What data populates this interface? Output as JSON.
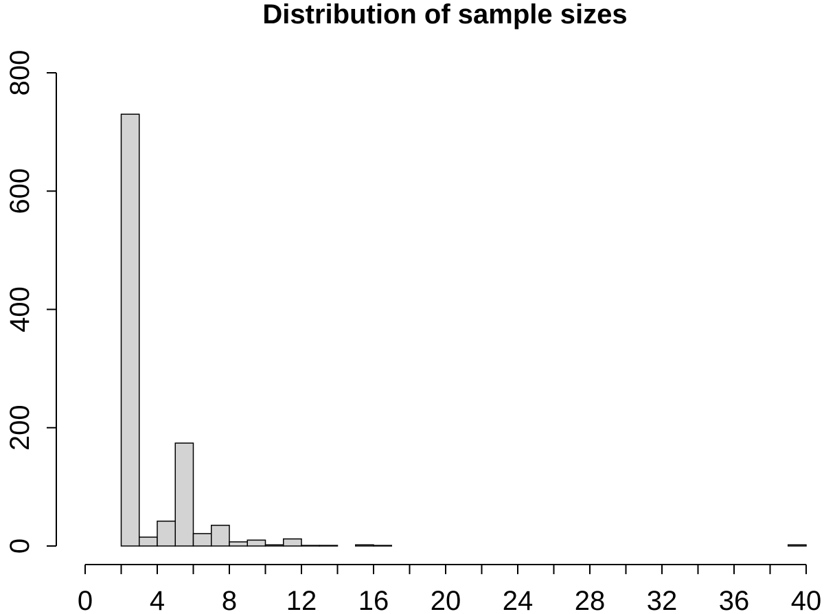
{
  "chart_data": {
    "type": "bar",
    "title": "Distribution of sample sizes",
    "xlabel": "",
    "ylabel": "",
    "bin_width": 1,
    "bins": [
      {
        "x0": 2,
        "x1": 3,
        "value": 730
      },
      {
        "x0": 3,
        "x1": 4,
        "value": 15
      },
      {
        "x0": 4,
        "x1": 5,
        "value": 42
      },
      {
        "x0": 5,
        "x1": 6,
        "value": 174
      },
      {
        "x0": 6,
        "x1": 7,
        "value": 21
      },
      {
        "x0": 7,
        "x1": 8,
        "value": 35
      },
      {
        "x0": 8,
        "x1": 9,
        "value": 7
      },
      {
        "x0": 9,
        "x1": 10,
        "value": 10
      },
      {
        "x0": 10,
        "x1": 11,
        "value": 2
      },
      {
        "x0": 11,
        "x1": 12,
        "value": 12
      },
      {
        "x0": 12,
        "x1": 13,
        "value": 1
      },
      {
        "x0": 13,
        "x1": 14,
        "value": 1
      },
      {
        "x0": 14,
        "x1": 15,
        "value": 0
      },
      {
        "x0": 15,
        "x1": 16,
        "value": 2
      },
      {
        "x0": 16,
        "x1": 17,
        "value": 1
      },
      {
        "x0": 17,
        "x1": 18,
        "value": 0
      },
      {
        "x0": 18,
        "x1": 19,
        "value": 0
      },
      {
        "x0": 19,
        "x1": 20,
        "value": 0
      },
      {
        "x0": 20,
        "x1": 21,
        "value": 0
      },
      {
        "x0": 21,
        "x1": 22,
        "value": 0
      },
      {
        "x0": 22,
        "x1": 23,
        "value": 0
      },
      {
        "x0": 23,
        "x1": 24,
        "value": 0
      },
      {
        "x0": 24,
        "x1": 25,
        "value": 0
      },
      {
        "x0": 25,
        "x1": 26,
        "value": 0
      },
      {
        "x0": 26,
        "x1": 27,
        "value": 0
      },
      {
        "x0": 27,
        "x1": 28,
        "value": 0
      },
      {
        "x0": 28,
        "x1": 29,
        "value": 0
      },
      {
        "x0": 29,
        "x1": 30,
        "value": 0
      },
      {
        "x0": 30,
        "x1": 31,
        "value": 0
      },
      {
        "x0": 31,
        "x1": 32,
        "value": 0
      },
      {
        "x0": 32,
        "x1": 33,
        "value": 0
      },
      {
        "x0": 33,
        "x1": 34,
        "value": 0
      },
      {
        "x0": 34,
        "x1": 35,
        "value": 0
      },
      {
        "x0": 35,
        "x1": 36,
        "value": 0
      },
      {
        "x0": 36,
        "x1": 37,
        "value": 0
      },
      {
        "x0": 37,
        "x1": 38,
        "value": 0
      },
      {
        "x0": 38,
        "x1": 39,
        "value": 0
      },
      {
        "x0": 39,
        "x1": 40,
        "value": 2
      }
    ],
    "xlim": [
      0,
      40
    ],
    "ylim": [
      0,
      800
    ],
    "x_ticks": [
      0,
      2,
      4,
      6,
      8,
      10,
      12,
      14,
      16,
      18,
      20,
      22,
      24,
      26,
      28,
      30,
      32,
      34,
      36,
      38,
      40
    ],
    "x_tick_labels": [
      "0",
      "4",
      "8",
      "12",
      "16",
      "20",
      "24",
      "28",
      "32",
      "36",
      "40"
    ],
    "y_ticks": [
      0,
      200,
      400,
      600,
      800
    ],
    "y_tick_labels": [
      "0",
      "200",
      "400",
      "600",
      "800"
    ],
    "grid": false,
    "legend": "none",
    "colors": {
      "bar_fill": "#d3d3d3",
      "bar_stroke": "#000000"
    }
  }
}
